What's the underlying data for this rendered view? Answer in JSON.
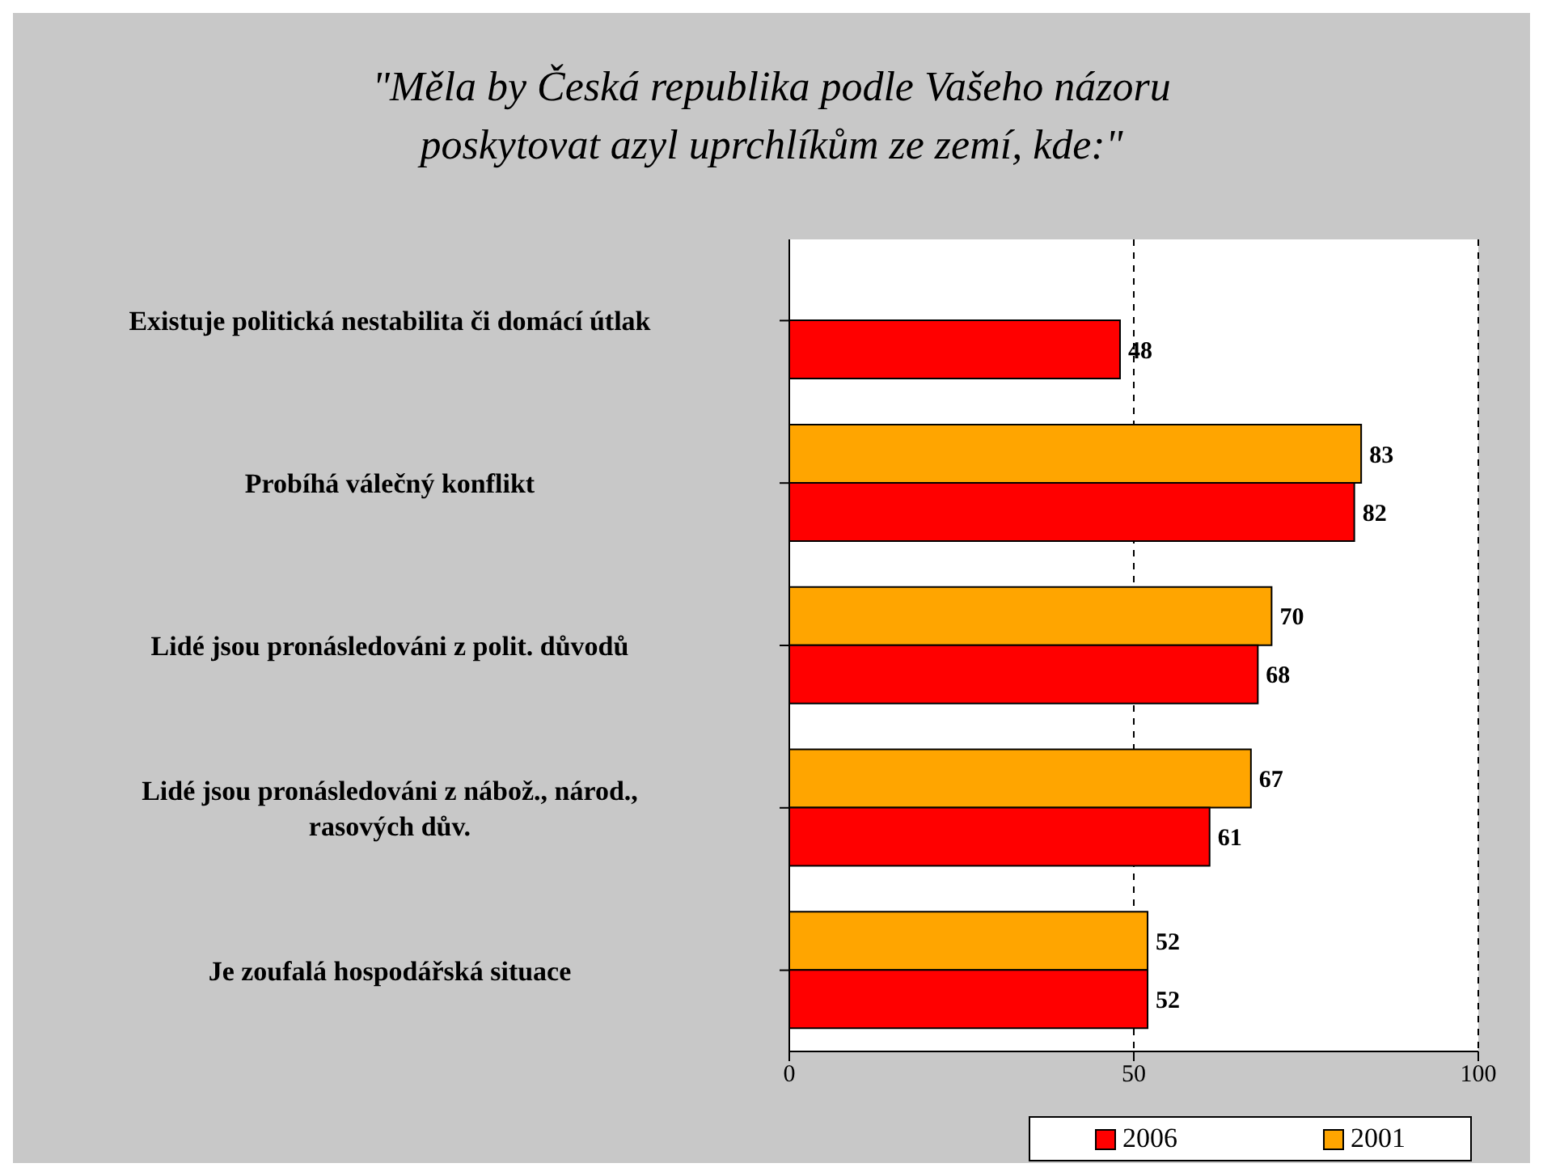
{
  "chart_data": {
    "type": "bar",
    "orientation": "horizontal",
    "title": "\"Měla by Česká republika podle Vašeho názoru poskytovat azyl uprchlíkům ze zemí, kde:\"",
    "categories": [
      "Existuje politická nestabilita či domácí útlak",
      "Probíhá válečný konflikt",
      "Lidé jsou pronásledováni z polit. důvodů",
      "Lidé jsou pronásledováni z nábož., národ., rasových dův.",
      "Je zoufalá hospodářská situace"
    ],
    "series": [
      {
        "name": "2006",
        "color": "#ff0000",
        "values": [
          48,
          82,
          68,
          61,
          52
        ]
      },
      {
        "name": "2001",
        "color": "#ffa500",
        "values": [
          null,
          83,
          70,
          67,
          52
        ]
      }
    ],
    "xlim": [
      0,
      100
    ],
    "xticks": [
      0,
      50,
      100
    ],
    "grid": "x",
    "legend": "bottom right",
    "data_labels": true
  }
}
